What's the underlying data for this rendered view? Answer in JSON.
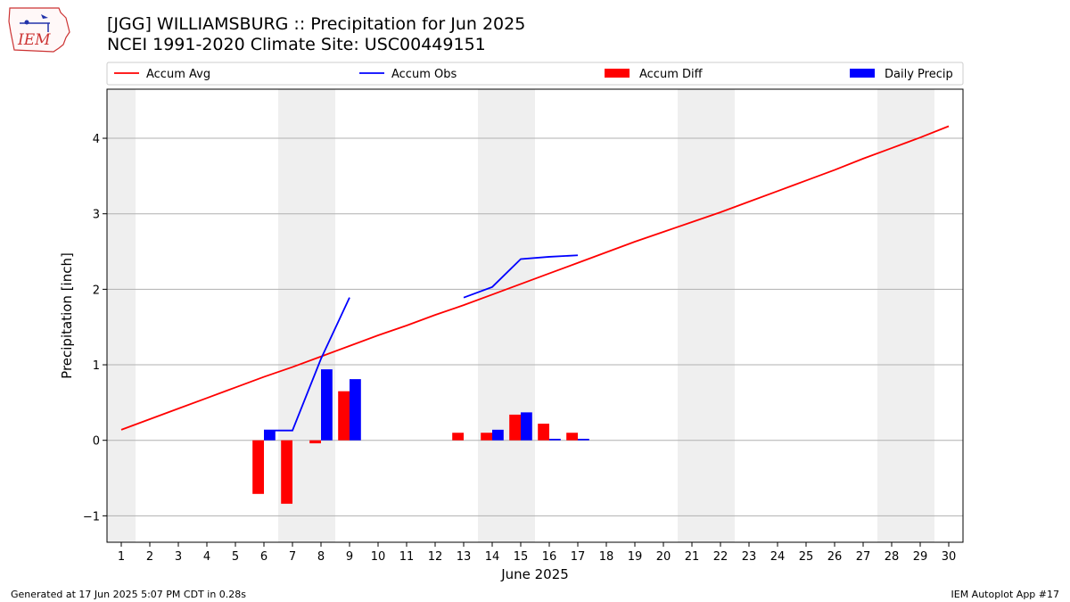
{
  "page": {
    "title_line1": "[JGG] WILLIAMSBURG :: Precipitation for Jun 2025",
    "title_line2": "NCEI 1991-2020 Climate Site: USC00449151",
    "footer_left": "Generated at 17 Jun 2025 5:07 PM CDT in 0.28s",
    "footer_right": "IEM Autoplot App #17",
    "logo_text": "IEM"
  },
  "chart_data": {
    "type": "bar",
    "xlabel": "June 2025",
    "ylabel": "Precipitation [inch]",
    "xlim": [
      0.5,
      30.5
    ],
    "ylim": [
      -1.35,
      4.65
    ],
    "yticks": [
      -1,
      0,
      1,
      2,
      3,
      4
    ],
    "ytick_labels": [
      "−1",
      "0",
      "1",
      "2",
      "3",
      "4"
    ],
    "days": [
      1,
      2,
      3,
      4,
      5,
      6,
      7,
      8,
      9,
      10,
      11,
      12,
      13,
      14,
      15,
      16,
      17,
      18,
      19,
      20,
      21,
      22,
      23,
      24,
      25,
      26,
      27,
      28,
      29,
      30
    ],
    "weekend_days": [
      1,
      7,
      8,
      14,
      15,
      21,
      22,
      28,
      29
    ],
    "grid": true,
    "legend_placement": "top, outside plot, single row",
    "legend": [
      {
        "label": "Accum Avg",
        "kind": "line",
        "color": "#ff0000"
      },
      {
        "label": "Accum Obs",
        "kind": "line",
        "color": "#0000ff"
      },
      {
        "label": "Accum Diff",
        "kind": "bar",
        "color": "#ff0000"
      },
      {
        "label": "Daily Precip",
        "kind": "bar",
        "color": "#0000ff"
      }
    ],
    "series": [
      {
        "name": "Accum Avg",
        "type": "line",
        "color": "#ff0000",
        "values": [
          0.14,
          0.28,
          0.42,
          0.56,
          0.7,
          0.84,
          0.97,
          1.11,
          1.25,
          1.39,
          1.52,
          1.66,
          1.79,
          1.93,
          2.07,
          2.21,
          2.35,
          2.49,
          2.63,
          2.76,
          2.89,
          3.02,
          3.16,
          3.3,
          3.44,
          3.58,
          3.73,
          3.87,
          4.01,
          4.16
        ]
      },
      {
        "name": "Accum Obs",
        "type": "line",
        "color": "#0000ff",
        "values": [
          null,
          null,
          null,
          null,
          null,
          0.13,
          0.13,
          1.08,
          1.89,
          null,
          null,
          null,
          1.89,
          2.03,
          2.4,
          2.43,
          2.45,
          null,
          null,
          null,
          null,
          null,
          null,
          null,
          null,
          null,
          null,
          null,
          null,
          null
        ]
      },
      {
        "name": "Accum Diff",
        "type": "bar",
        "color": "#ff0000",
        "values": [
          null,
          null,
          null,
          null,
          null,
          -0.71,
          -0.84,
          -0.04,
          0.65,
          null,
          null,
          null,
          0.1,
          0.1,
          0.34,
          0.22,
          0.1,
          null,
          null,
          null,
          null,
          null,
          null,
          null,
          null,
          null,
          null,
          null,
          null,
          null
        ]
      },
      {
        "name": "Daily Precip",
        "type": "bar",
        "color": "#0000ff",
        "values": [
          null,
          null,
          null,
          null,
          null,
          0.13,
          0,
          0.94,
          0.81,
          null,
          null,
          null,
          0,
          0.14,
          0.37,
          0.02,
          0.02,
          null,
          null,
          null,
          null,
          null,
          null,
          null,
          null,
          null,
          null,
          null,
          null,
          null
        ]
      }
    ]
  }
}
